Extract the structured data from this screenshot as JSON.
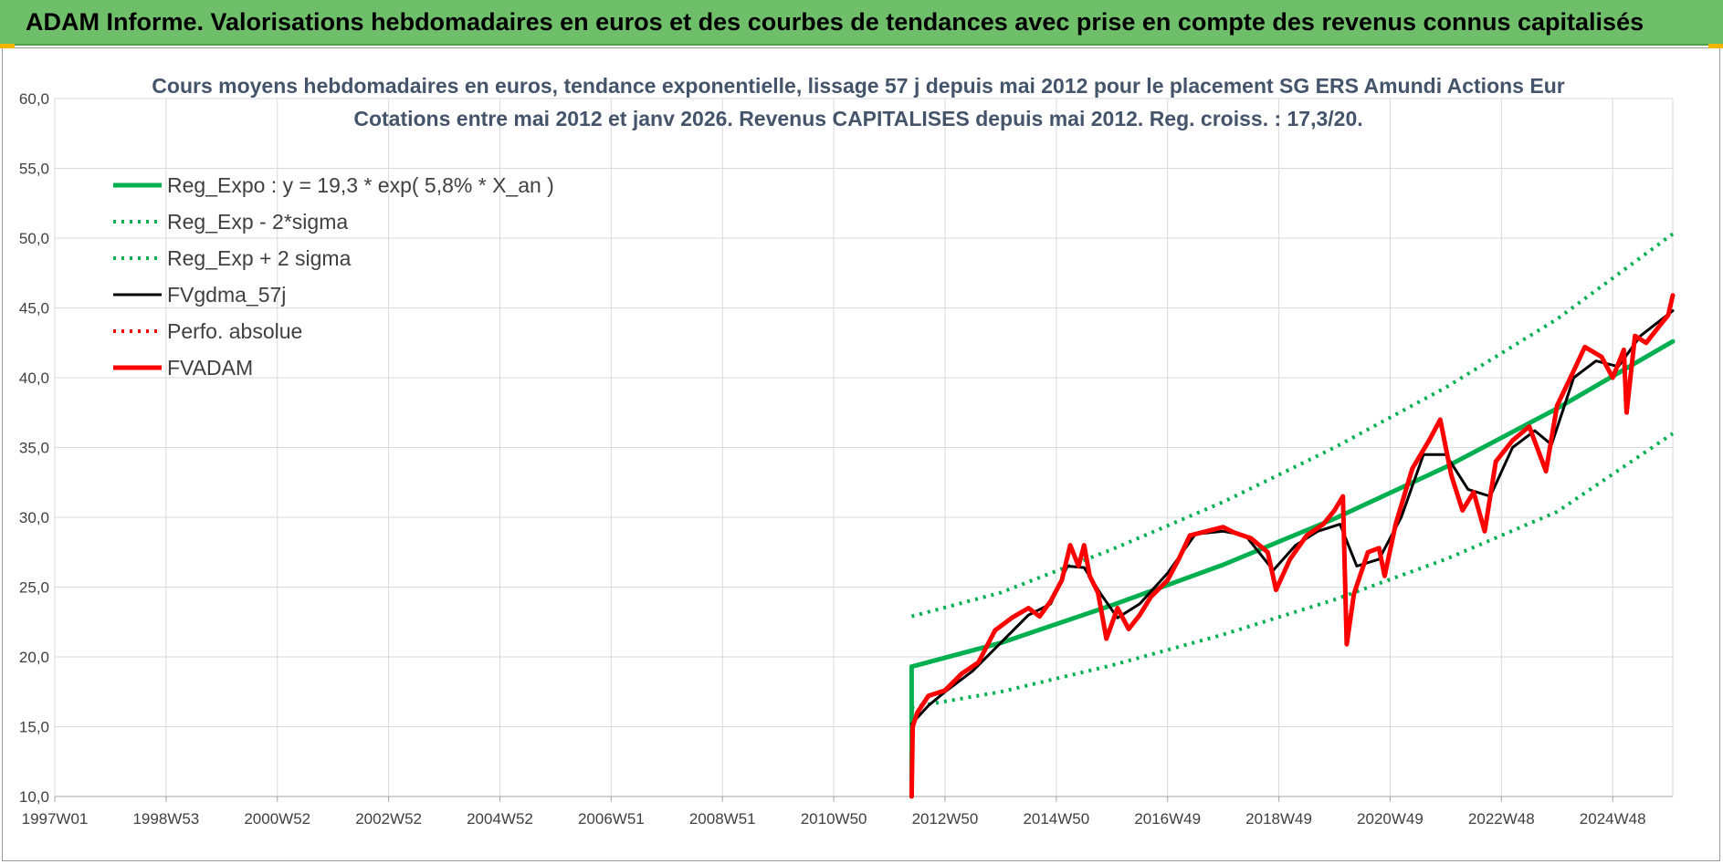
{
  "banner": {
    "text": "ADAM Informe. Valorisations hebdomadaires en euros et des courbes de tendances avec prise en compte des revenus connus capitalisés"
  },
  "colors": {
    "banner": "#6fbf6a",
    "trend": "#00b050",
    "smooth": "#000000",
    "price": "#ff0000",
    "perfo": "#ff0000",
    "title": "#44546a",
    "corner": "#f2b600"
  },
  "chart_data": {
    "type": "line",
    "title": "Cours moyens hebdomadaires en euros, tendance exponentielle, lissage 57 j depuis mai 2012 pour le placement SG ERS Amundi Actions Eur",
    "subtitle": "Cotations entre mai 2012 et janv 2026. Revenus CAPITALISES depuis mai 2012. Reg. croiss. : 17,3/20.",
    "xlabel": "",
    "ylabel": "",
    "x_range": [
      1997.0,
      2026.08
    ],
    "ylim": [
      10,
      60
    ],
    "y_ticks": [
      "10,0",
      "15,0",
      "20,0",
      "25,0",
      "30,0",
      "35,0",
      "40,0",
      "45,0",
      "50,0",
      "55,0",
      "60,0"
    ],
    "x_ticks": [
      {
        "label": "1997W01",
        "x": 1997.0
      },
      {
        "label": "1998W53",
        "x": 1999.0
      },
      {
        "label": "2000W52",
        "x": 2001.0
      },
      {
        "label": "2002W52",
        "x": 2003.0
      },
      {
        "label": "2004W52",
        "x": 2005.0
      },
      {
        "label": "2006W51",
        "x": 2007.0
      },
      {
        "label": "2008W51",
        "x": 2009.0
      },
      {
        "label": "2010W50",
        "x": 2011.0
      },
      {
        "label": "2012W50",
        "x": 2013.0
      },
      {
        "label": "2014W50",
        "x": 2015.0
      },
      {
        "label": "2016W49",
        "x": 2017.0
      },
      {
        "label": "2018W49",
        "x": 2019.0
      },
      {
        "label": "2020W49",
        "x": 2021.0
      },
      {
        "label": "2022W48",
        "x": 2023.0
      },
      {
        "label": "2024W48",
        "x": 2025.0
      }
    ],
    "grid": true,
    "legend_position": "top-left",
    "series": [
      {
        "name": "Reg_Expo : y = 19,3 * exp( 5,8% *  X_an )",
        "style": "solid-thick",
        "color": "#00b050",
        "points": [
          [
            2012.4,
            10.0
          ],
          [
            2012.4,
            19.3
          ],
          [
            2014,
            21.0
          ],
          [
            2016,
            23.7
          ],
          [
            2018,
            26.6
          ],
          [
            2020,
            29.9
          ],
          [
            2022,
            33.6
          ],
          [
            2024,
            37.8
          ],
          [
            2026.08,
            42.6
          ]
        ]
      },
      {
        "name": "Reg_Exp - 2*sigma",
        "style": "dotted",
        "color": "#00b050",
        "points": [
          [
            2012.4,
            16.4
          ],
          [
            2014,
            17.5
          ],
          [
            2016,
            19.4
          ],
          [
            2018,
            21.6
          ],
          [
            2020,
            24.1
          ],
          [
            2022,
            27.0
          ],
          [
            2024,
            30.4
          ],
          [
            2026.08,
            36.0
          ]
        ]
      },
      {
        "name": "Reg_Exp + 2 sigma",
        "style": "dotted",
        "color": "#00b050",
        "points": [
          [
            2012.4,
            22.9
          ],
          [
            2014,
            24.6
          ],
          [
            2016,
            27.7
          ],
          [
            2018,
            31.1
          ],
          [
            2020,
            35.0
          ],
          [
            2022,
            39.3
          ],
          [
            2024,
            44.2
          ],
          [
            2026.08,
            50.3
          ]
        ]
      },
      {
        "name": "FVgdma_57j",
        "style": "solid",
        "color": "#000000",
        "points": [
          [
            2012.4,
            15.2
          ],
          [
            2012.7,
            16.5
          ],
          [
            2013,
            17.5
          ],
          [
            2013.5,
            19.0
          ],
          [
            2014,
            21.0
          ],
          [
            2014.5,
            23.0
          ],
          [
            2014.9,
            23.8
          ],
          [
            2015.2,
            26.5
          ],
          [
            2015.5,
            26.4
          ],
          [
            2015.8,
            24.5
          ],
          [
            2016.1,
            22.8
          ],
          [
            2016.5,
            23.8
          ],
          [
            2017,
            26.0
          ],
          [
            2017.5,
            28.8
          ],
          [
            2018,
            29.0
          ],
          [
            2018.4,
            28.7
          ],
          [
            2018.9,
            26.2
          ],
          [
            2019.3,
            28.0
          ],
          [
            2019.7,
            29.0
          ],
          [
            2020.1,
            29.5
          ],
          [
            2020.4,
            26.5
          ],
          [
            2020.8,
            27.0
          ],
          [
            2021.2,
            30.0
          ],
          [
            2021.6,
            34.5
          ],
          [
            2022.0,
            34.5
          ],
          [
            2022.4,
            32.0
          ],
          [
            2022.8,
            31.5
          ],
          [
            2023.2,
            35.0
          ],
          [
            2023.6,
            36.2
          ],
          [
            2023.9,
            35.2
          ],
          [
            2024.3,
            40.0
          ],
          [
            2024.7,
            41.2
          ],
          [
            2025.1,
            40.8
          ],
          [
            2025.5,
            43.0
          ],
          [
            2026.08,
            44.8
          ]
        ]
      },
      {
        "name": "Perfo. absolue",
        "style": "dotted",
        "color": "#ff0000",
        "points": []
      },
      {
        "name": "FVADAM",
        "style": "solid-thick",
        "color": "#ff0000",
        "points": [
          [
            2012.4,
            10.0
          ],
          [
            2012.42,
            15.0
          ],
          [
            2012.5,
            16.0
          ],
          [
            2012.7,
            17.2
          ],
          [
            2013,
            17.6
          ],
          [
            2013.3,
            18.8
          ],
          [
            2013.6,
            19.6
          ],
          [
            2013.9,
            21.9
          ],
          [
            2014.2,
            22.8
          ],
          [
            2014.5,
            23.5
          ],
          [
            2014.7,
            22.9
          ],
          [
            2014.9,
            24.0
          ],
          [
            2015.1,
            25.5
          ],
          [
            2015.25,
            28.0
          ],
          [
            2015.4,
            26.5
          ],
          [
            2015.5,
            28.0
          ],
          [
            2015.6,
            25.8
          ],
          [
            2015.75,
            24.6
          ],
          [
            2015.9,
            21.3
          ],
          [
            2016.1,
            23.5
          ],
          [
            2016.3,
            22.0
          ],
          [
            2016.5,
            23.0
          ],
          [
            2016.7,
            24.3
          ],
          [
            2017.0,
            25.5
          ],
          [
            2017.2,
            27.0
          ],
          [
            2017.4,
            28.7
          ],
          [
            2017.7,
            29.0
          ],
          [
            2018.0,
            29.3
          ],
          [
            2018.2,
            28.9
          ],
          [
            2018.5,
            28.5
          ],
          [
            2018.8,
            27.5
          ],
          [
            2018.95,
            24.8
          ],
          [
            2019.2,
            27.0
          ],
          [
            2019.5,
            28.7
          ],
          [
            2019.8,
            29.5
          ],
          [
            2020.0,
            30.5
          ],
          [
            2020.15,
            31.5
          ],
          [
            2020.22,
            20.9
          ],
          [
            2020.35,
            24.5
          ],
          [
            2020.6,
            27.5
          ],
          [
            2020.8,
            27.8
          ],
          [
            2020.9,
            25.8
          ],
          [
            2021.1,
            29.5
          ],
          [
            2021.4,
            33.5
          ],
          [
            2021.7,
            35.5
          ],
          [
            2021.9,
            37.0
          ],
          [
            2022.1,
            33.0
          ],
          [
            2022.3,
            30.5
          ],
          [
            2022.5,
            31.8
          ],
          [
            2022.7,
            29.0
          ],
          [
            2022.9,
            34.0
          ],
          [
            2023.2,
            35.5
          ],
          [
            2023.5,
            36.5
          ],
          [
            2023.8,
            33.3
          ],
          [
            2024.0,
            38.0
          ],
          [
            2024.3,
            40.5
          ],
          [
            2024.5,
            42.2
          ],
          [
            2024.8,
            41.5
          ],
          [
            2025.0,
            40.0
          ],
          [
            2025.2,
            42.0
          ],
          [
            2025.25,
            37.5
          ],
          [
            2025.4,
            43.0
          ],
          [
            2025.6,
            42.5
          ],
          [
            2025.8,
            43.5
          ],
          [
            2026.0,
            44.5
          ],
          [
            2026.08,
            45.9
          ]
        ]
      }
    ]
  }
}
